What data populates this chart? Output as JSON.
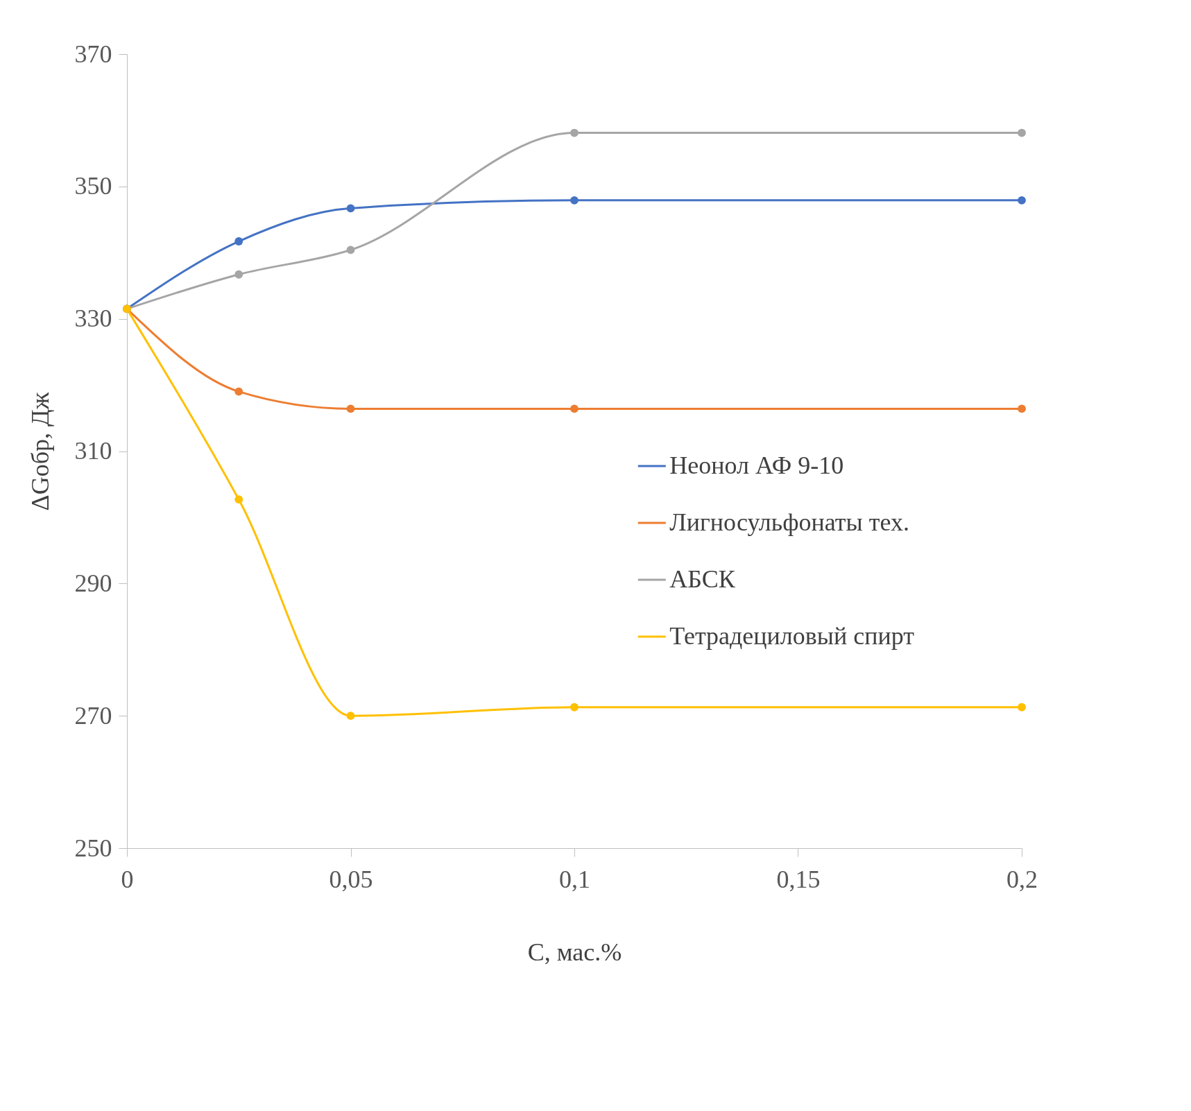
{
  "chart_data": {
    "type": "line",
    "xlabel": "C, мас.%",
    "ylabel": "ΔGобр, Дж",
    "x": [
      0,
      0.025,
      0.05,
      0.1,
      0.2
    ],
    "xlim": [
      0,
      0.2
    ],
    "xticks": [
      0,
      {
        "value": 0.05,
        "label": "0,05"
      },
      {
        "value": 0.1,
        "label": "0,1"
      },
      {
        "value": 0.15,
        "label": "0,15"
      },
      {
        "value": 0.2,
        "label": "0,2"
      }
    ],
    "ylim": [
      250,
      370
    ],
    "yticks": [
      250,
      270,
      290,
      310,
      330,
      350,
      370
    ],
    "grid": false,
    "legend": "right",
    "marker": "circle",
    "line_style": "solid",
    "series": [
      {
        "name": "Неонол АФ 9-10",
        "color": "#4472c4",
        "values": [
          331.5,
          341.7,
          346.7,
          347.9,
          347.9
        ]
      },
      {
        "name": "Лигносульфонаты тех.",
        "color": "#ed7d31",
        "values": [
          331.5,
          319.0,
          316.4,
          316.4,
          316.4
        ]
      },
      {
        "name": "АБСК",
        "color": "#a5a5a5",
        "values": [
          331.5,
          336.7,
          340.4,
          358.1,
          358.1
        ]
      },
      {
        "name": "Тетрадециловый спирт",
        "color": "#ffc000",
        "values": [
          331.5,
          302.7,
          270.0,
          271.3,
          271.3
        ]
      }
    ]
  }
}
